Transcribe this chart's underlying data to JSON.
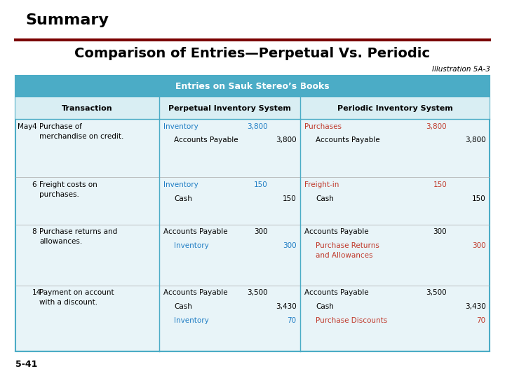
{
  "title": "Summary",
  "subtitle": "Comparison of Entries—Perpetual Vs. Periodic",
  "illustration": "Illustration 5A-3",
  "page_num": "5-41",
  "header_text": "Entries on Sauk Stereo’s Books",
  "col_headers": [
    "Transaction",
    "Perpetual Inventory System",
    "Periodic Inventory System"
  ],
  "header_bg": "#4BACC6",
  "table_bg": "#E8F4F8",
  "border_color": "#4BACC6",
  "dark_red_line": "#7B0000",
  "blue_color": "#1F7DC4",
  "red_color": "#C0392B",
  "black_color": "#000000",
  "subheader_bg": "#D9EEF3",
  "rows": [
    {
      "date": "May  4",
      "transaction": "Purchase of\nmerchandise on credit.",
      "perp_entries": [
        {
          "text": "Inventory",
          "color": "#1F7DC4",
          "indent": 0,
          "dr": "3,800",
          "cr": ""
        },
        {
          "text": "Accounts Payable",
          "color": "#000000",
          "indent": 1,
          "dr": "",
          "cr": "3,800"
        }
      ],
      "peri_entries": [
        {
          "text": "Purchases",
          "color": "#C0392B",
          "indent": 0,
          "dr": "3,800",
          "cr": ""
        },
        {
          "text": "Accounts Payable",
          "color": "#000000",
          "indent": 1,
          "dr": "",
          "cr": "3,800"
        }
      ]
    },
    {
      "date": "     6",
      "transaction": "Freight costs on\npurchases.",
      "perp_entries": [
        {
          "text": "Inventory",
          "color": "#1F7DC4",
          "indent": 0,
          "dr": "150",
          "cr": ""
        },
        {
          "text": "Cash",
          "color": "#000000",
          "indent": 1,
          "dr": "",
          "cr": "150"
        }
      ],
      "peri_entries": [
        {
          "text": "Freight-in",
          "color": "#C0392B",
          "indent": 0,
          "dr": "150",
          "cr": ""
        },
        {
          "text": "Cash",
          "color": "#000000",
          "indent": 1,
          "dr": "",
          "cr": "150"
        }
      ]
    },
    {
      "date": "     8",
      "transaction": "Purchase returns and\nallowances.",
      "perp_entries": [
        {
          "text": "Accounts Payable",
          "color": "#000000",
          "indent": 0,
          "dr": "300",
          "cr": ""
        },
        {
          "text": "Inventory",
          "color": "#1F7DC4",
          "indent": 1,
          "dr": "",
          "cr": "300"
        }
      ],
      "peri_entries": [
        {
          "text": "Accounts Payable",
          "color": "#000000",
          "indent": 0,
          "dr": "300",
          "cr": ""
        },
        {
          "text": "Purchase Returns\nand Allowances",
          "color": "#C0392B",
          "indent": 1,
          "dr": "",
          "cr": "300"
        }
      ]
    },
    {
      "date": "    14",
      "transaction": "Payment on account\nwith a discount.",
      "perp_entries": [
        {
          "text": "Accounts Payable",
          "color": "#000000",
          "indent": 0,
          "dr": "3,500",
          "cr": ""
        },
        {
          "text": "Cash",
          "color": "#000000",
          "indent": 1,
          "dr": "",
          "cr": "3,430"
        },
        {
          "text": "Inventory",
          "color": "#1F7DC4",
          "indent": 1,
          "dr": "",
          "cr": "70"
        }
      ],
      "peri_entries": [
        {
          "text": "Accounts Payable",
          "color": "#000000",
          "indent": 0,
          "dr": "3,500",
          "cr": ""
        },
        {
          "text": "Cash",
          "color": "#000000",
          "indent": 1,
          "dr": "",
          "cr": "3,430"
        },
        {
          "text": "Purchase Discounts",
          "color": "#C0392B",
          "indent": 1,
          "dr": "",
          "cr": "70"
        }
      ]
    }
  ]
}
